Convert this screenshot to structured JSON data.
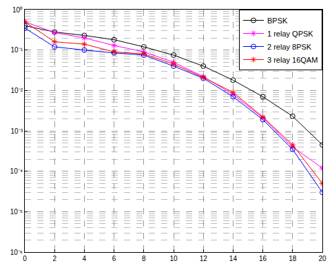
{
  "chart_data": {
    "type": "line",
    "log": "y",
    "grid": true,
    "legend": "top-right",
    "x": [
      0,
      2,
      4,
      6,
      8,
      10,
      12,
      14,
      16,
      18,
      20
    ],
    "xlim": [
      0,
      20
    ],
    "xticks": [
      0,
      2,
      4,
      6,
      8,
      10,
      12,
      14,
      16,
      18,
      20
    ],
    "ylim": [
      1e-06,
      1
    ],
    "yticks": [
      {
        "value": 1e-06,
        "label": "10⁻⁶"
      },
      {
        "value": 1e-05,
        "label": "10⁻⁵"
      },
      {
        "value": 0.0001,
        "label": "10⁻⁴"
      },
      {
        "value": 0.001,
        "label": "10⁻³"
      },
      {
        "value": 0.01,
        "label": "10⁻²"
      },
      {
        "value": 0.1,
        "label": "10⁻¹"
      },
      {
        "value": 1,
        "label": "10⁰"
      }
    ],
    "series": [
      {
        "name": "BPSK",
        "color": "#000000",
        "marker": "circle-open",
        "line_style": "solid",
        "values": [
          0.4,
          0.28,
          0.23,
          0.18,
          0.12,
          0.075,
          0.04,
          0.018,
          0.007,
          0.0023,
          0.00045
        ]
      },
      {
        "name": "1 relay QPSK",
        "color": "#ff00ff",
        "marker": "asterisk-open",
        "line_style": "solid",
        "values": [
          0.5,
          0.27,
          0.2,
          0.13,
          0.09,
          0.05,
          0.022,
          0.008,
          0.0021,
          0.0004,
          0.00012
        ]
      },
      {
        "name": "2 relay 8PSK",
        "color": "#0000ff",
        "marker": "circle-open",
        "line_style": "solid",
        "values": [
          0.35,
          0.12,
          0.1,
          0.085,
          0.075,
          0.04,
          0.02,
          0.007,
          0.0019,
          0.00035,
          3e-05
        ]
      },
      {
        "name": "3 relay 16QAM",
        "color": "#ff0000",
        "marker": "asterisk-open",
        "line_style": "solid",
        "values": [
          0.5,
          0.16,
          0.14,
          0.09,
          0.08,
          0.045,
          0.021,
          0.009,
          0.0022,
          0.00045,
          5e-05
        ]
      }
    ]
  }
}
